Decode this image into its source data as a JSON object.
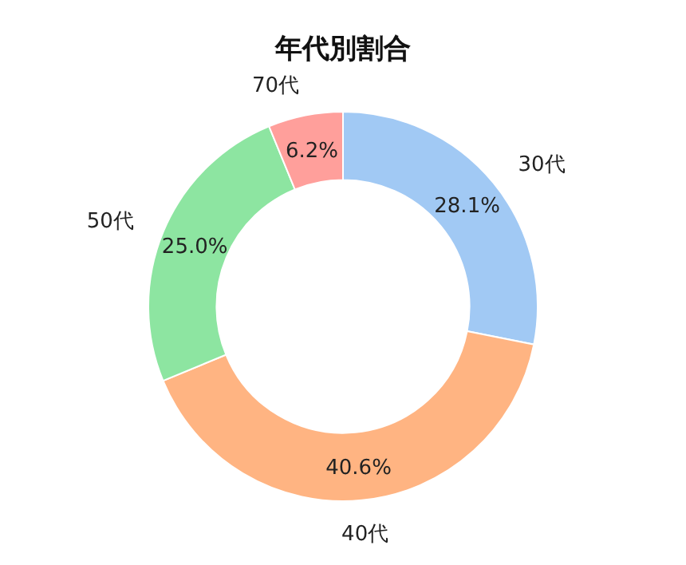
{
  "chart_data": {
    "type": "donut",
    "title": "年代別割合",
    "categories": [
      "30代",
      "40代",
      "50代",
      "70代"
    ],
    "values": [
      28.1,
      40.6,
      25.0,
      6.2
    ],
    "colors": [
      "#a1c9f4",
      "#ffb482",
      "#8de5a1",
      "#ff9f9b"
    ],
    "value_labels": [
      "28.1%",
      "40.6%",
      "25.0%",
      "6.2%"
    ]
  }
}
